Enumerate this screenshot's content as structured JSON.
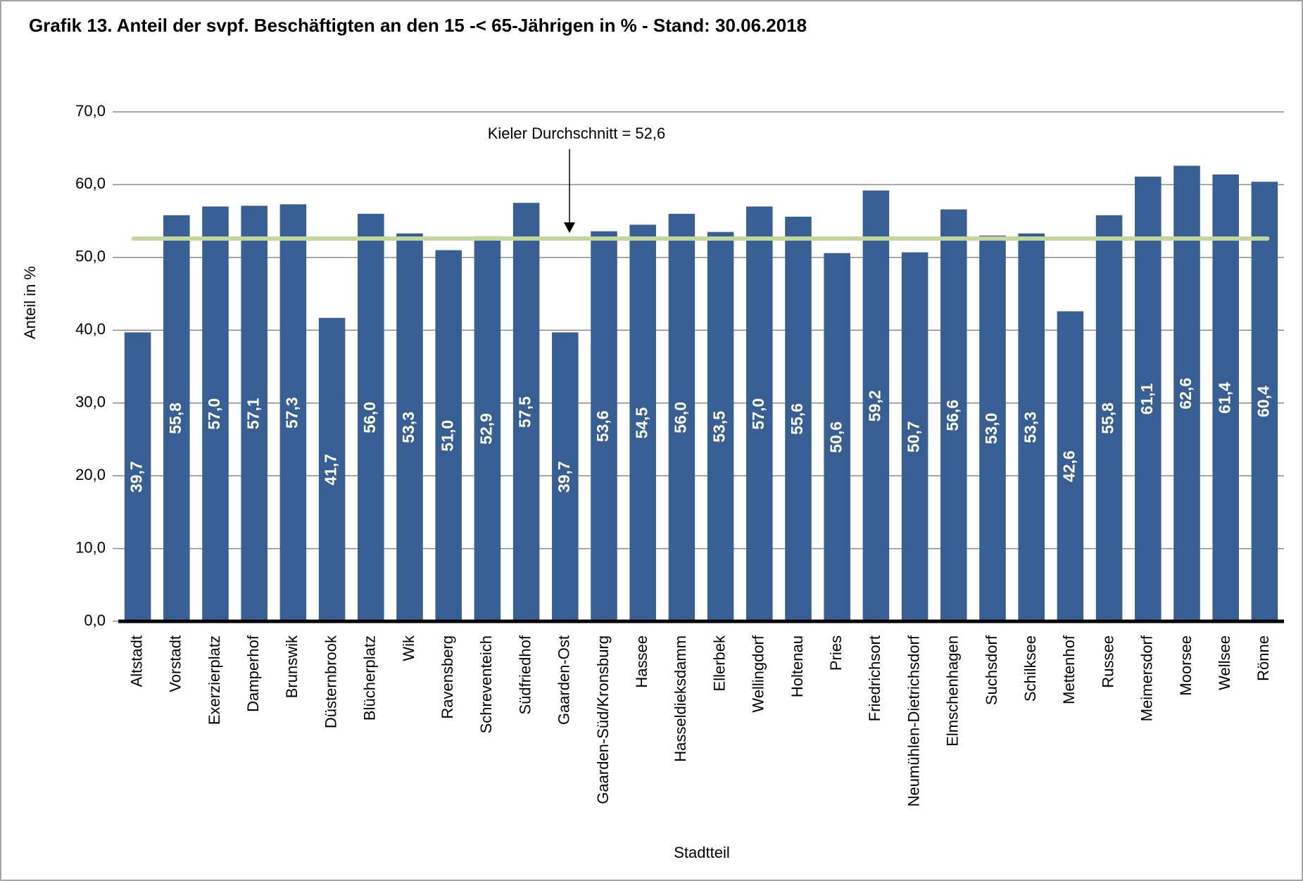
{
  "chart_data": {
    "type": "bar",
    "title": "Grafik 13.  Anteil der svpf. Beschäftigten an den 15 -< 65-Jährigen in % - Stand: 30.06.2018",
    "ylabel": "Anteil in %",
    "xlabel": "Stadtteil",
    "categories": [
      "Altstadt",
      "Vorstadt",
      "Exerzierplatz",
      "Damperhof",
      "Brunswik",
      "Düsternbrook",
      "Blücherplatz",
      "Wik",
      "Ravensberg",
      "Schreventeich",
      "Südfriedhof",
      "Gaarden-Ost",
      "Gaarden-Süd/Kronsburg",
      "Hassee",
      "Hasseldieksdamm",
      "Ellerbek",
      "Wellingdorf",
      "Holtenau",
      "Pries",
      "Friedrichsort",
      "Neumühlen-Dietrichsdorf",
      "Elmschenhagen",
      "Suchsdorf",
      "Schilksee",
      "Mettenhof",
      "Russee",
      "Meimersdorf",
      "Moorsee",
      "Wellsee",
      "Rönne"
    ],
    "values": [
      39.7,
      55.8,
      57.0,
      57.1,
      57.3,
      41.7,
      56.0,
      53.3,
      51.0,
      52.9,
      57.5,
      39.7,
      53.6,
      54.5,
      56.0,
      53.5,
      57.0,
      55.6,
      50.6,
      59.2,
      50.7,
      56.6,
      53.0,
      53.3,
      42.6,
      55.8,
      61.1,
      62.6,
      61.4,
      60.4
    ],
    "value_labels": [
      "39,7",
      "55,8",
      "57,0",
      "57,1",
      "57,3",
      "41,7",
      "56,0",
      "53,3",
      "51,0",
      "52,9",
      "57,5",
      "39,7",
      "53,6",
      "54,5",
      "56,0",
      "53,5",
      "57,0",
      "55,6",
      "50,6",
      "59,2",
      "50,7",
      "56,6",
      "53,0",
      "53,3",
      "42,6",
      "55,8",
      "61,1",
      "62,6",
      "61,4",
      "60,4"
    ],
    "color": "#375f93",
    "average": 52.6,
    "average_color": "#c3d69b",
    "annotation": "Kieler Durchschnitt = 52,6",
    "ylim": [
      0,
      70
    ],
    "yticks": [
      {
        "value": 0,
        "label": "0,0"
      },
      {
        "value": 10,
        "label": "10,0"
      },
      {
        "value": 20,
        "label": "20,0"
      },
      {
        "value": 30,
        "label": "30,0"
      },
      {
        "value": 40,
        "label": "40,0"
      },
      {
        "value": 50,
        "label": "50,0"
      },
      {
        "value": 60,
        "label": "60,0"
      },
      {
        "value": 70,
        "label": "70,0"
      }
    ],
    "grid": true
  }
}
